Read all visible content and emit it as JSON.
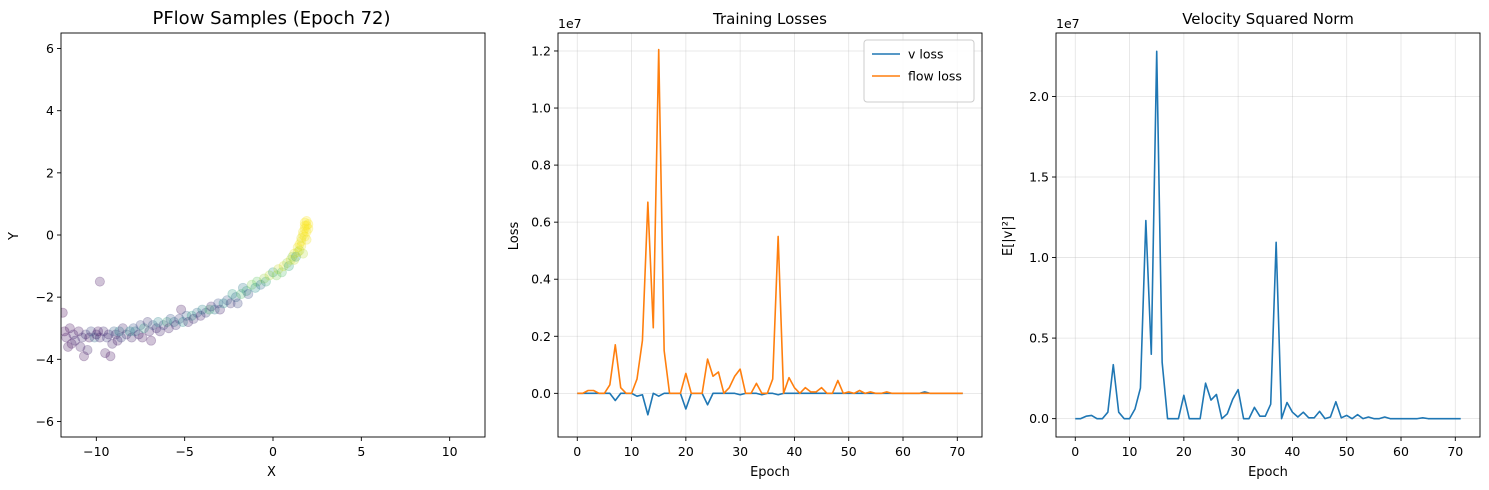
{
  "chart_data": [
    {
      "type": "scatter",
      "title": "PFlow Samples (Epoch 72)",
      "xlabel": "X",
      "ylabel": "Y",
      "xlim": [
        -12,
        12
      ],
      "ylim": [
        -6.5,
        6.5
      ],
      "xticks": [
        -10,
        -5,
        0,
        5,
        10
      ],
      "xtick_labels": [
        "−10",
        "−5",
        "0",
        "5",
        "10"
      ],
      "yticks": [
        -6,
        -4,
        -2,
        0,
        2,
        4,
        6
      ],
      "ytick_labels": [
        "−6",
        "−4",
        "−2",
        "0",
        "2",
        "4",
        "6"
      ],
      "grid": false,
      "colormap": "viridis",
      "marker_alpha": 0.25,
      "points": [
        [
          -11.9,
          -2.5,
          0.0
        ],
        [
          -11.8,
          -3.1,
          0.02
        ],
        [
          -11.7,
          -3.3,
          0.05
        ],
        [
          -11.6,
          -3.6,
          0.04
        ],
        [
          -11.5,
          -3.0,
          0.03
        ],
        [
          -11.4,
          -3.5,
          0.06
        ],
        [
          -11.3,
          -3.2,
          0.08
        ],
        [
          -11.2,
          -3.4,
          0.1
        ],
        [
          -11.0,
          -3.1,
          0.05
        ],
        [
          -10.9,
          -3.6,
          0.07
        ],
        [
          -10.8,
          -3.3,
          0.12
        ],
        [
          -10.7,
          -3.9,
          0.04
        ],
        [
          -10.6,
          -3.2,
          0.15
        ],
        [
          -10.5,
          -3.7,
          0.09
        ],
        [
          -10.4,
          -3.3,
          0.06
        ],
        [
          -10.3,
          -3.1,
          0.2
        ],
        [
          -10.1,
          -3.3,
          0.35
        ],
        [
          -10.0,
          -3.2,
          0.08
        ],
        [
          -9.9,
          -3.1,
          0.05
        ],
        [
          -9.8,
          -3.3,
          0.1
        ],
        [
          -9.8,
          -1.5,
          0.05
        ],
        [
          -9.6,
          -3.1,
          0.12
        ],
        [
          -9.5,
          -3.8,
          0.06
        ],
        [
          -9.4,
          -3.3,
          0.18
        ],
        [
          -9.3,
          -3.2,
          0.1
        ],
        [
          -9.2,
          -3.9,
          0.05
        ],
        [
          -9.1,
          -3.5,
          0.08
        ],
        [
          -9.0,
          -3.1,
          0.3
        ],
        [
          -8.9,
          -3.2,
          0.12
        ],
        [
          -8.8,
          -3.4,
          0.07
        ],
        [
          -8.7,
          -3.1,
          0.45
        ],
        [
          -8.6,
          -3.3,
          0.2
        ],
        [
          -8.5,
          -3.0,
          0.1
        ],
        [
          -8.3,
          -3.2,
          0.15
        ],
        [
          -8.1,
          -3.1,
          0.5
        ],
        [
          -8.0,
          -3.3,
          0.09
        ],
        [
          -7.9,
          -3.0,
          0.25
        ],
        [
          -7.8,
          -3.1,
          0.4
        ],
        [
          -7.6,
          -3.2,
          0.1
        ],
        [
          -7.5,
          -2.9,
          0.2
        ],
        [
          -7.4,
          -3.3,
          0.06
        ],
        [
          -7.3,
          -3.0,
          0.55
        ],
        [
          -7.1,
          -2.8,
          0.15
        ],
        [
          -7.0,
          -3.1,
          0.08
        ],
        [
          -6.9,
          -3.4,
          0.05
        ],
        [
          -6.8,
          -2.9,
          0.3
        ],
        [
          -6.6,
          -3.0,
          0.12
        ],
        [
          -6.5,
          -2.8,
          0.45
        ],
        [
          -6.4,
          -3.1,
          0.1
        ],
        [
          -6.2,
          -2.9,
          0.2
        ],
        [
          -6.0,
          -2.8,
          0.6
        ],
        [
          -5.9,
          -3.0,
          0.08
        ],
        [
          -5.8,
          -2.7,
          0.25
        ],
        [
          -5.6,
          -2.8,
          0.4
        ],
        [
          -5.5,
          -2.9,
          0.12
        ],
        [
          -5.3,
          -2.7,
          0.18
        ],
        [
          -5.2,
          -2.4,
          0.06
        ],
        [
          -5.1,
          -2.8,
          0.5
        ],
        [
          -4.9,
          -2.6,
          0.3
        ],
        [
          -4.8,
          -2.8,
          0.1
        ],
        [
          -4.6,
          -2.6,
          0.55
        ],
        [
          -4.5,
          -2.7,
          0.15
        ],
        [
          -4.3,
          -2.5,
          0.35
        ],
        [
          -4.1,
          -2.6,
          0.08
        ],
        [
          -4.0,
          -2.4,
          0.45
        ],
        [
          -3.8,
          -2.5,
          0.2
        ],
        [
          -3.6,
          -2.4,
          0.65
        ],
        [
          -3.5,
          -2.3,
          0.12
        ],
        [
          -3.3,
          -2.4,
          0.4
        ],
        [
          -3.1,
          -2.2,
          0.25
        ],
        [
          -3.0,
          -2.4,
          0.1
        ],
        [
          -2.8,
          -2.2,
          0.5
        ],
        [
          -2.6,
          -2.1,
          0.3
        ],
        [
          -2.4,
          -2.2,
          0.15
        ],
        [
          -2.3,
          -1.9,
          0.55
        ],
        [
          -2.1,
          -2.0,
          0.35
        ],
        [
          -2.0,
          -2.2,
          0.2
        ],
        [
          -1.8,
          -1.9,
          0.7
        ],
        [
          -1.7,
          -1.7,
          0.4
        ],
        [
          -1.5,
          -1.8,
          0.6
        ],
        [
          -1.4,
          -1.9,
          0.25
        ],
        [
          -1.2,
          -1.6,
          0.8
        ],
        [
          -1.0,
          -1.7,
          0.5
        ],
        [
          -0.9,
          -1.5,
          0.75
        ],
        [
          -0.7,
          -1.6,
          0.35
        ],
        [
          -0.5,
          -1.4,
          0.85
        ],
        [
          -0.4,
          -1.5,
          0.6
        ],
        [
          -0.2,
          -1.3,
          0.9
        ],
        [
          0.0,
          -1.2,
          0.55
        ],
        [
          0.2,
          -1.3,
          0.8
        ],
        [
          0.3,
          -1.1,
          0.92
        ],
        [
          0.5,
          -1.2,
          0.7
        ],
        [
          0.6,
          -1.0,
          0.95
        ],
        [
          0.8,
          -0.9,
          0.85
        ],
        [
          0.9,
          -1.0,
          0.6
        ],
        [
          1.0,
          -0.8,
          0.95
        ],
        [
          1.1,
          -0.7,
          0.8
        ],
        [
          1.2,
          -0.6,
          0.97
        ],
        [
          1.3,
          -0.7,
          0.5
        ],
        [
          1.4,
          -0.4,
          0.98
        ],
        [
          1.5,
          -0.3,
          1.0
        ],
        [
          1.5,
          -0.5,
          0.9
        ],
        [
          1.6,
          -0.2,
          1.0
        ],
        [
          1.6,
          -0.1,
          0.95
        ],
        [
          1.7,
          0.0,
          1.0
        ],
        [
          1.7,
          0.1,
          0.98
        ],
        [
          1.7,
          -0.6,
          0.9
        ],
        [
          1.8,
          0.2,
          1.0
        ],
        [
          1.8,
          0.3,
          1.0
        ],
        [
          1.8,
          0.4,
          0.99
        ],
        [
          1.9,
          0.1,
          1.0
        ],
        [
          1.9,
          0.3,
          1.0
        ],
        [
          1.9,
          0.45,
          1.0
        ],
        [
          2.0,
          0.2,
          0.99
        ],
        [
          2.0,
          0.35,
          1.0
        ],
        [
          1.8,
          -0.05,
          1.0
        ],
        [
          1.9,
          -0.15,
          0.98
        ],
        [
          1.6,
          -0.35,
          0.97
        ],
        [
          1.4,
          -0.55,
          0.92
        ],
        [
          1.2,
          -0.8,
          0.9
        ]
      ]
    },
    {
      "type": "line",
      "title": "Training Losses",
      "xlabel": "Epoch",
      "ylabel": "Loss",
      "offset_text": "1e7",
      "xlim": [
        -3.55,
        74.55
      ],
      "ylim": [
        -1.53,
        12.63
      ],
      "xticks": [
        0,
        10,
        20,
        30,
        40,
        50,
        60,
        70
      ],
      "xtick_labels": [
        "0",
        "10",
        "20",
        "30",
        "40",
        "50",
        "60",
        "70"
      ],
      "yticks": [
        0,
        2,
        4,
        6,
        8,
        10,
        12
      ],
      "ytick_labels": [
        "0.0",
        "0.2",
        "0.4",
        "0.6",
        "0.8",
        "1.0",
        "1.2"
      ],
      "grid": true,
      "legend_position": "top-right",
      "x": [
        0,
        1,
        2,
        3,
        4,
        5,
        6,
        7,
        8,
        9,
        10,
        11,
        12,
        13,
        14,
        15,
        16,
        17,
        18,
        19,
        20,
        21,
        22,
        23,
        24,
        25,
        26,
        27,
        28,
        29,
        30,
        31,
        32,
        33,
        34,
        35,
        36,
        37,
        38,
        39,
        40,
        41,
        42,
        43,
        44,
        45,
        46,
        47,
        48,
        49,
        50,
        51,
        52,
        53,
        54,
        55,
        56,
        57,
        58,
        59,
        60,
        61,
        62,
        63,
        64,
        65,
        66,
        67,
        68,
        69,
        70,
        71
      ],
      "series": [
        {
          "name": "v loss",
          "color": "#1f77b4",
          "values": [
            0,
            0,
            0,
            0,
            0,
            0,
            0,
            -0.25,
            0,
            0,
            0,
            -0.1,
            -0.05,
            -0.75,
            0,
            -0.1,
            0,
            0,
            0,
            0,
            -0.55,
            0,
            0,
            0,
            -0.4,
            0,
            0,
            0,
            0,
            0,
            -0.05,
            0,
            0,
            0,
            -0.05,
            0,
            0,
            -0.05,
            0,
            0,
            0,
            0,
            0,
            0,
            0,
            0,
            0,
            0,
            0,
            0,
            0,
            0,
            0,
            0,
            0,
            0,
            0,
            0,
            0,
            0,
            0,
            0,
            0,
            0,
            0.05,
            0,
            0,
            0,
            0,
            0,
            0,
            0
          ]
        },
        {
          "name": "flow loss",
          "color": "#ff7f0e",
          "values": [
            0,
            0,
            0.1,
            0.1,
            0,
            0,
            0.3,
            1.7,
            0.2,
            0,
            0,
            0.5,
            1.85,
            6.7,
            2.3,
            12.05,
            1.5,
            0,
            0,
            0,
            0.7,
            0,
            0,
            0,
            1.2,
            0.6,
            0.75,
            0,
            0.2,
            0.6,
            0.85,
            0,
            0,
            0.35,
            0,
            0,
            0.5,
            5.5,
            0,
            0.55,
            0.2,
            0,
            0.2,
            0.05,
            0.05,
            0.2,
            0,
            0,
            0.45,
            0,
            0.05,
            0,
            0.1,
            0,
            0.05,
            0,
            0,
            0.05,
            0,
            0,
            0,
            0,
            0,
            0,
            0,
            0,
            0,
            0,
            0,
            0,
            0,
            0
          ]
        }
      ]
    },
    {
      "type": "line",
      "title": "Velocity Squared Norm",
      "xlabel": "Epoch",
      "ylabel": "E[|v|²]",
      "offset_text": "1e7",
      "xlim": [
        -3.55,
        74.55
      ],
      "ylim": [
        -1.14,
        23.94
      ],
      "xticks": [
        0,
        10,
        20,
        30,
        40,
        50,
        60,
        70
      ],
      "xtick_labels": [
        "0",
        "10",
        "20",
        "30",
        "40",
        "50",
        "60",
        "70"
      ],
      "yticks": [
        0,
        5,
        10,
        15,
        20
      ],
      "ytick_labels": [
        "0.0",
        "0.5",
        "1.0",
        "1.5",
        "2.0"
      ],
      "grid": true,
      "x": [
        0,
        1,
        2,
        3,
        4,
        5,
        6,
        7,
        8,
        9,
        10,
        11,
        12,
        13,
        14,
        15,
        16,
        17,
        18,
        19,
        20,
        21,
        22,
        23,
        24,
        25,
        26,
        27,
        28,
        29,
        30,
        31,
        32,
        33,
        34,
        35,
        36,
        37,
        38,
        39,
        40,
        41,
        42,
        43,
        44,
        45,
        46,
        47,
        48,
        49,
        50,
        51,
        52,
        53,
        54,
        55,
        56,
        57,
        58,
        59,
        60,
        61,
        62,
        63,
        64,
        65,
        66,
        67,
        68,
        69,
        70,
        71
      ],
      "series": [
        {
          "name": "",
          "color": "#1f77b4",
          "values": [
            0,
            0,
            0.15,
            0.2,
            0,
            0,
            0.4,
            3.35,
            0.4,
            0,
            0,
            0.6,
            1.9,
            12.3,
            4.0,
            22.8,
            3.5,
            0,
            0,
            0,
            1.45,
            0,
            0,
            0,
            2.2,
            1.15,
            1.5,
            0,
            0.3,
            1.2,
            1.8,
            0,
            0,
            0.7,
            0.15,
            0.15,
            0.9,
            10.95,
            0,
            1.0,
            0.4,
            0.1,
            0.4,
            0.05,
            0.05,
            0.45,
            0,
            0.1,
            1.05,
            0.05,
            0.2,
            0,
            0.25,
            0,
            0.1,
            0,
            0,
            0.1,
            0,
            0,
            0,
            0,
            0,
            0,
            0.05,
            0,
            0,
            0,
            0,
            0,
            0,
            0
          ]
        }
      ]
    }
  ]
}
